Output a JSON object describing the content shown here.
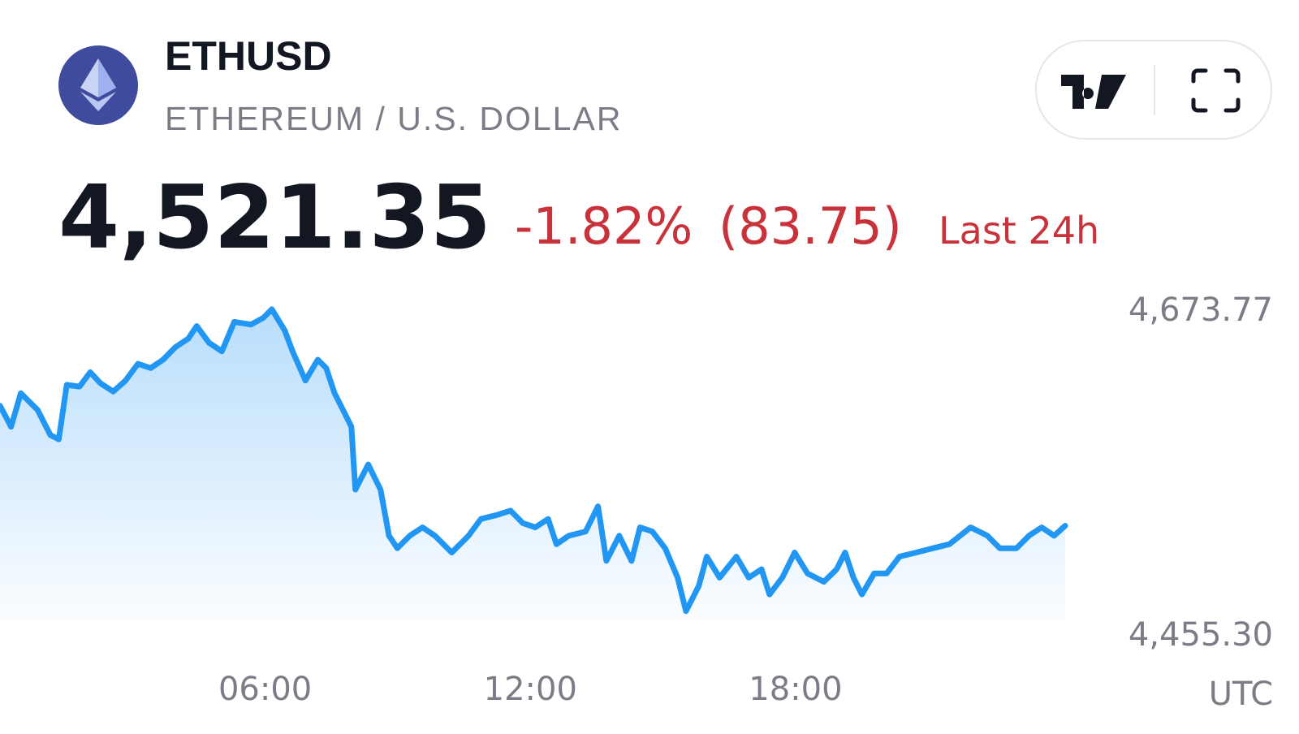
{
  "header": {
    "symbol": "ETHUSD",
    "name": "ETHEREUM / U.S. DOLLAR",
    "price": "4,521.35",
    "change": "-1.82%",
    "change_abs": "(83.75)",
    "period": "Last 24h"
  },
  "chart_data": {
    "type": "line",
    "color": "#2196f3",
    "xlabel": "UTC",
    "xlim": [
      0,
      24.1
    ],
    "ylim": [
      4455.3,
      4673.77
    ],
    "xticks": [
      {
        "value": 6,
        "label": "06:00"
      },
      {
        "value": 12,
        "label": "12:00"
      },
      {
        "value": 18,
        "label": "18:00"
      }
    ],
    "yticks": [
      {
        "value": 4455.3,
        "label": "4,455.30"
      },
      {
        "value": 4673.77,
        "label": "4,673.77"
      }
    ],
    "series": [
      {
        "name": "ETHUSD",
        "x": [
          0,
          0.25,
          0.47,
          0.85,
          1.14,
          1.33,
          1.51,
          1.8,
          2.04,
          2.27,
          2.56,
          2.84,
          3.12,
          3.41,
          3.69,
          3.97,
          4.26,
          4.45,
          4.73,
          5.02,
          5.3,
          5.68,
          5.96,
          6.15,
          6.44,
          6.62,
          6.91,
          7.19,
          7.38,
          7.57,
          7.76,
          7.95,
          8.04,
          8.33,
          8.61,
          8.8,
          8.99,
          9.27,
          9.56,
          9.84,
          10.22,
          10.6,
          10.88,
          11.26,
          11.55,
          11.83,
          12.11,
          12.4,
          12.59,
          12.87,
          13.25,
          13.53,
          13.72,
          14.01,
          14.29,
          14.48,
          14.76,
          15.05,
          15.33,
          15.52,
          15.81,
          15.99,
          16.28,
          16.66,
          16.94,
          17.23,
          17.41,
          17.7,
          17.98,
          18.27,
          18.64,
          18.93,
          19.12,
          19.31,
          19.5,
          19.78,
          20.06,
          20.35,
          20.73,
          21.11,
          21.48,
          21.96,
          22.34,
          22.62,
          23,
          23.28,
          23.57,
          23.85,
          24.1
        ],
        "values": [
          4605.9,
          4591.1,
          4614.7,
          4602.9,
          4585.2,
          4582.2,
          4620.6,
          4619.4,
          4629.5,
          4621.8,
          4615.9,
          4623.6,
          4635.4,
          4632.4,
          4638.3,
          4647.2,
          4653.1,
          4662.0,
          4650.2,
          4644.2,
          4664.9,
          4663.1,
          4667.9,
          4673.8,
          4659.0,
          4644.2,
          4623.6,
          4638.3,
          4632.4,
          4614.7,
          4602.9,
          4591.1,
          4546.8,
          4564.5,
          4546.8,
          4514.3,
          4505.5,
          4514.3,
          4520.2,
          4514.3,
          4502.5,
          4514.3,
          4526.1,
          4529.1,
          4532.0,
          4523.2,
          4520.2,
          4526.1,
          4508.4,
          4514.3,
          4517.3,
          4535.0,
          4496.6,
          4514.3,
          4496.6,
          4520.2,
          4517.3,
          4505.5,
          4484.8,
          4461.2,
          4478.9,
          4499.6,
          4484.8,
          4499.6,
          4484.8,
          4490.7,
          4473.0,
          4484.8,
          4502.5,
          4487.8,
          4481.9,
          4490.7,
          4502.5,
          4484.8,
          4473.0,
          4487.8,
          4487.8,
          4499.6,
          4502.5,
          4505.5,
          4508.4,
          4520.2,
          4514.3,
          4505.5,
          4505.5,
          4514.3,
          4520.2,
          4514.3,
          4521.35
        ]
      }
    ]
  }
}
